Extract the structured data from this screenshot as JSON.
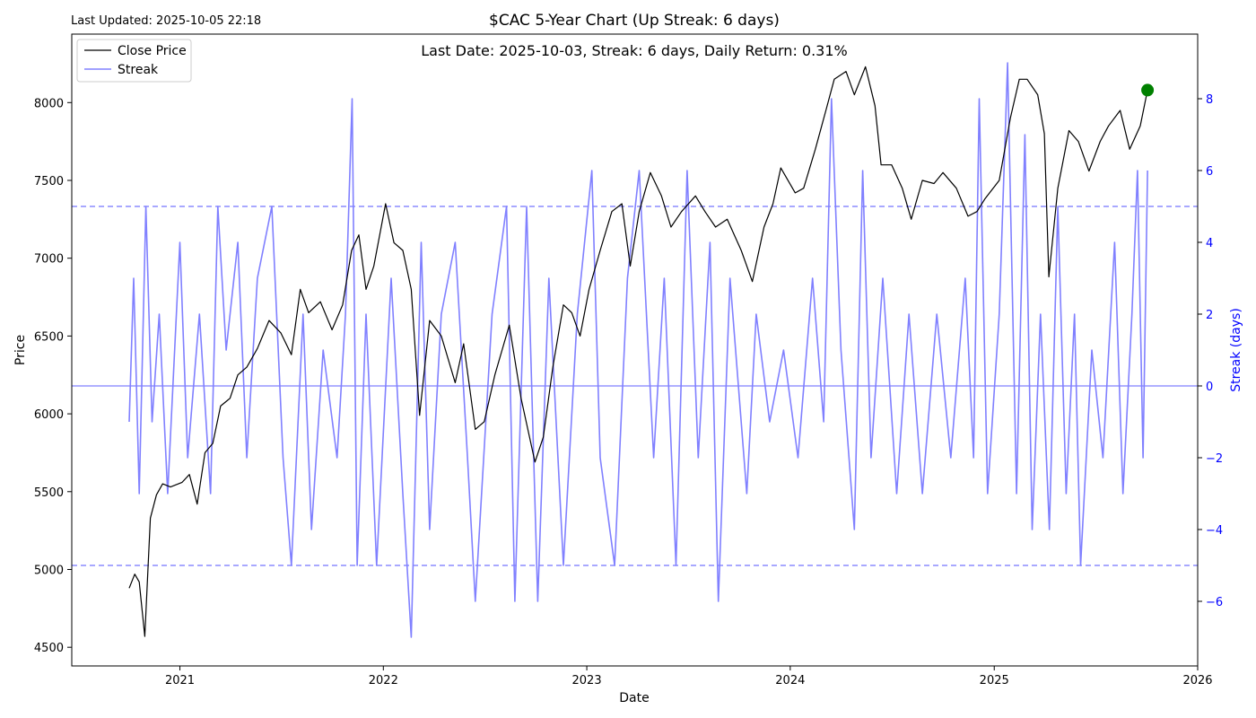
{
  "chart_data": {
    "type": "line",
    "title": "$CAC 5-Year Chart (Up Streak: 6 days)",
    "subtitle": "Last Date: 2025-10-03, Streak: 6 days, Daily Return: 0.31%",
    "updated": "Last Updated: 2025-10-05 22:18",
    "xlabel": "Date",
    "ylabel": "Price",
    "y2label": "Streak (days)",
    "xlim": [
      "2020-06-21",
      "2026-01-01"
    ],
    "ylim": [
      4380,
      8440
    ],
    "y2lim": [
      -7.8,
      9.8
    ],
    "xticks": [
      "2021",
      "2022",
      "2023",
      "2024",
      "2025",
      "2026"
    ],
    "yticks": [
      4500,
      5000,
      5500,
      6000,
      6500,
      7000,
      7500,
      8000
    ],
    "y2ticks": [
      -6,
      -4,
      -2,
      0,
      2,
      4,
      6,
      8
    ],
    "reference_lines": {
      "streak_zero": 0,
      "streak_upper": 5,
      "streak_lower": -5
    },
    "legend": {
      "placement": "top-left",
      "entries": [
        "Close Price",
        "Streak"
      ]
    },
    "colors": {
      "price": "#000000",
      "streak": "#8080ff",
      "streak_axis": "#0000ff",
      "marker": "#008000",
      "ref": "#8c8cff"
    },
    "series": [
      {
        "name": "Close Price",
        "axis": "left",
        "points": [
          [
            "2020-10-02",
            4880
          ],
          [
            "2020-10-12",
            4970
          ],
          [
            "2020-10-20",
            4920
          ],
          [
            "2020-10-30",
            4570
          ],
          [
            "2020-11-09",
            5330
          ],
          [
            "2020-11-20",
            5480
          ],
          [
            "2020-12-01",
            5550
          ],
          [
            "2020-12-15",
            5530
          ],
          [
            "2021-01-05",
            5560
          ],
          [
            "2021-01-18",
            5610
          ],
          [
            "2021-02-01",
            5420
          ],
          [
            "2021-02-15",
            5750
          ],
          [
            "2021-03-01",
            5810
          ],
          [
            "2021-03-15",
            6050
          ],
          [
            "2021-04-01",
            6100
          ],
          [
            "2021-04-15",
            6250
          ],
          [
            "2021-05-01",
            6300
          ],
          [
            "2021-05-20",
            6420
          ],
          [
            "2021-06-10",
            6600
          ],
          [
            "2021-07-01",
            6520
          ],
          [
            "2021-07-20",
            6380
          ],
          [
            "2021-08-05",
            6800
          ],
          [
            "2021-08-20",
            6650
          ],
          [
            "2021-09-10",
            6720
          ],
          [
            "2021-10-01",
            6540
          ],
          [
            "2021-10-20",
            6700
          ],
          [
            "2021-11-05",
            7050
          ],
          [
            "2021-11-18",
            7150
          ],
          [
            "2021-12-01",
            6800
          ],
          [
            "2021-12-15",
            6950
          ],
          [
            "2022-01-05",
            7350
          ],
          [
            "2022-01-20",
            7100
          ],
          [
            "2022-02-05",
            7050
          ],
          [
            "2022-02-20",
            6800
          ],
          [
            "2022-03-07",
            5990
          ],
          [
            "2022-03-25",
            6600
          ],
          [
            "2022-04-15",
            6500
          ],
          [
            "2022-05-10",
            6200
          ],
          [
            "2022-05-25",
            6450
          ],
          [
            "2022-06-15",
            5900
          ],
          [
            "2022-07-01",
            5950
          ],
          [
            "2022-07-20",
            6250
          ],
          [
            "2022-08-15",
            6570
          ],
          [
            "2022-09-05",
            6100
          ],
          [
            "2022-09-30",
            5690
          ],
          [
            "2022-10-15",
            5850
          ],
          [
            "2022-11-01",
            6300
          ],
          [
            "2022-11-20",
            6700
          ],
          [
            "2022-12-05",
            6650
          ],
          [
            "2022-12-20",
            6500
          ],
          [
            "2023-01-05",
            6800
          ],
          [
            "2023-01-25",
            7050
          ],
          [
            "2023-02-15",
            7300
          ],
          [
            "2023-03-05",
            7350
          ],
          [
            "2023-03-20",
            6950
          ],
          [
            "2023-04-05",
            7300
          ],
          [
            "2023-04-25",
            7550
          ],
          [
            "2023-05-15",
            7400
          ],
          [
            "2023-06-01",
            7200
          ],
          [
            "2023-06-20",
            7300
          ],
          [
            "2023-07-15",
            7400
          ],
          [
            "2023-08-01",
            7300
          ],
          [
            "2023-08-20",
            7200
          ],
          [
            "2023-09-10",
            7250
          ],
          [
            "2023-10-05",
            7050
          ],
          [
            "2023-10-25",
            6850
          ],
          [
            "2023-11-15",
            7200
          ],
          [
            "2023-12-01",
            7350
          ],
          [
            "2023-12-15",
            7580
          ],
          [
            "2024-01-10",
            7420
          ],
          [
            "2024-01-25",
            7450
          ],
          [
            "2024-02-15",
            7700
          ],
          [
            "2024-03-05",
            7950
          ],
          [
            "2024-03-20",
            8150
          ],
          [
            "2024-04-10",
            8200
          ],
          [
            "2024-04-25",
            8050
          ],
          [
            "2024-05-15",
            8230
          ],
          [
            "2024-06-01",
            7980
          ],
          [
            "2024-06-12",
            7600
          ],
          [
            "2024-07-01",
            7600
          ],
          [
            "2024-07-20",
            7450
          ],
          [
            "2024-08-05",
            7250
          ],
          [
            "2024-08-25",
            7500
          ],
          [
            "2024-09-15",
            7480
          ],
          [
            "2024-10-01",
            7550
          ],
          [
            "2024-10-25",
            7450
          ],
          [
            "2024-11-15",
            7270
          ],
          [
            "2024-12-01",
            7300
          ],
          [
            "2024-12-15",
            7380
          ],
          [
            "2025-01-10",
            7500
          ],
          [
            "2025-01-30",
            7900
          ],
          [
            "2025-02-15",
            8150
          ],
          [
            "2025-03-01",
            8150
          ],
          [
            "2025-03-20",
            8050
          ],
          [
            "2025-04-01",
            7800
          ],
          [
            "2025-04-09",
            6880
          ],
          [
            "2025-04-25",
            7450
          ],
          [
            "2025-05-15",
            7820
          ],
          [
            "2025-06-01",
            7750
          ],
          [
            "2025-06-20",
            7560
          ],
          [
            "2025-07-10",
            7750
          ],
          [
            "2025-07-25",
            7850
          ],
          [
            "2025-08-15",
            7950
          ],
          [
            "2025-09-01",
            7700
          ],
          [
            "2025-09-20",
            7850
          ],
          [
            "2025-10-03",
            8080
          ]
        ]
      },
      {
        "name": "Streak",
        "axis": "right",
        "points": [
          [
            "2020-10-02",
            -1
          ],
          [
            "2020-10-10",
            3
          ],
          [
            "2020-10-20",
            -3
          ],
          [
            "2020-11-01",
            5
          ],
          [
            "2020-11-12",
            -1
          ],
          [
            "2020-11-25",
            2
          ],
          [
            "2020-12-10",
            -3
          ],
          [
            "2021-01-01",
            4
          ],
          [
            "2021-01-15",
            -2
          ],
          [
            "2021-02-05",
            2
          ],
          [
            "2021-02-25",
            -3
          ],
          [
            "2021-03-10",
            5
          ],
          [
            "2021-03-25",
            1
          ],
          [
            "2021-04-15",
            4
          ],
          [
            "2021-05-01",
            -2
          ],
          [
            "2021-05-20",
            3
          ],
          [
            "2021-06-15",
            5
          ],
          [
            "2021-07-05",
            -2
          ],
          [
            "2021-07-20",
            -5
          ],
          [
            "2021-08-10",
            2
          ],
          [
            "2021-08-25",
            -4
          ],
          [
            "2021-09-15",
            1
          ],
          [
            "2021-10-10",
            -2
          ],
          [
            "2021-10-25",
            2
          ],
          [
            "2021-11-06",
            8
          ],
          [
            "2021-11-15",
            -5
          ],
          [
            "2021-12-01",
            2
          ],
          [
            "2021-12-20",
            -5
          ],
          [
            "2022-01-15",
            3
          ],
          [
            "2022-02-05",
            -3
          ],
          [
            "2022-02-20",
            -7
          ],
          [
            "2022-03-10",
            4
          ],
          [
            "2022-03-25",
            -4
          ],
          [
            "2022-04-15",
            2
          ],
          [
            "2022-05-10",
            4
          ],
          [
            "2022-06-01",
            -2
          ],
          [
            "2022-06-15",
            -6
          ],
          [
            "2022-07-15",
            2
          ],
          [
            "2022-08-10",
            5
          ],
          [
            "2022-08-25",
            -6
          ],
          [
            "2022-09-15",
            5
          ],
          [
            "2022-10-05",
            -6
          ],
          [
            "2022-10-25",
            3
          ],
          [
            "2022-11-20",
            -5
          ],
          [
            "2022-12-15",
            2
          ],
          [
            "2023-01-10",
            6
          ],
          [
            "2023-01-25",
            -2
          ],
          [
            "2023-02-20",
            -5
          ],
          [
            "2023-03-15",
            3
          ],
          [
            "2023-04-05",
            6
          ],
          [
            "2023-05-01",
            -2
          ],
          [
            "2023-05-20",
            3
          ],
          [
            "2023-06-10",
            -5
          ],
          [
            "2023-06-30",
            6
          ],
          [
            "2023-07-20",
            -2
          ],
          [
            "2023-08-10",
            4
          ],
          [
            "2023-08-25",
            -6
          ],
          [
            "2023-09-15",
            3
          ],
          [
            "2023-10-15",
            -3
          ],
          [
            "2023-11-01",
            2
          ],
          [
            "2023-11-25",
            -1
          ],
          [
            "2023-12-20",
            1
          ],
          [
            "2024-01-15",
            -2
          ],
          [
            "2024-02-10",
            3
          ],
          [
            "2024-03-01",
            -1
          ],
          [
            "2024-03-15",
            8
          ],
          [
            "2024-04-01",
            1
          ],
          [
            "2024-04-25",
            -4
          ],
          [
            "2024-05-10",
            6
          ],
          [
            "2024-05-25",
            -2
          ],
          [
            "2024-06-15",
            3
          ],
          [
            "2024-07-10",
            -3
          ],
          [
            "2024-08-01",
            2
          ],
          [
            "2024-08-25",
            -3
          ],
          [
            "2024-09-20",
            2
          ],
          [
            "2024-10-15",
            -2
          ],
          [
            "2024-11-10",
            3
          ],
          [
            "2024-11-25",
            -2
          ],
          [
            "2024-12-05",
            8
          ],
          [
            "2024-12-20",
            -3
          ],
          [
            "2025-01-10",
            2
          ],
          [
            "2025-01-25",
            9
          ],
          [
            "2025-02-10",
            -3
          ],
          [
            "2025-02-25",
            7
          ],
          [
            "2025-03-10",
            -4
          ],
          [
            "2025-03-25",
            2
          ],
          [
            "2025-04-10",
            -4
          ],
          [
            "2025-04-25",
            5
          ],
          [
            "2025-05-10",
            -3
          ],
          [
            "2025-05-25",
            2
          ],
          [
            "2025-06-05",
            -5
          ],
          [
            "2025-06-25",
            1
          ],
          [
            "2025-07-15",
            -2
          ],
          [
            "2025-08-05",
            4
          ],
          [
            "2025-08-20",
            -3
          ],
          [
            "2025-09-05",
            2
          ],
          [
            "2025-09-15",
            6
          ],
          [
            "2025-09-25",
            -2
          ],
          [
            "2025-10-03",
            6
          ]
        ]
      }
    ],
    "last_point": {
      "date": "2025-10-03",
      "price": 8080
    }
  }
}
